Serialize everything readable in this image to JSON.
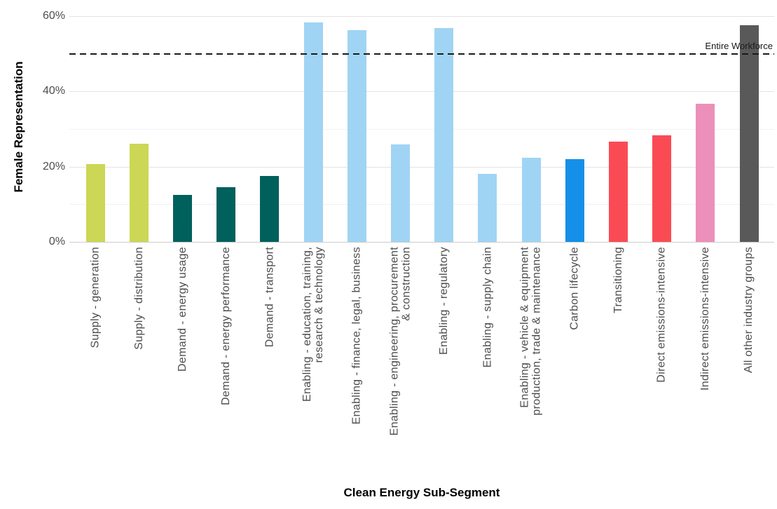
{
  "chart_data": {
    "type": "bar",
    "title": "",
    "xlabel": "Clean Energy Sub-Segment",
    "ylabel": "Female Representation",
    "ylim": [
      0,
      60
    ],
    "y_unit": "%",
    "grid": "horizontal",
    "legend_position": "none",
    "yticks": [
      {
        "value": 0,
        "label": "0%"
      },
      {
        "value": 20,
        "label": "20%"
      },
      {
        "value": 40,
        "label": "40%"
      },
      {
        "value": 60,
        "label": "60%"
      }
    ],
    "minor_gridlines": [
      10,
      30,
      50
    ],
    "reference_line": {
      "value": 50,
      "label": "Entire Workforce",
      "style": "dashed",
      "color": "#1a1a1a"
    },
    "bars": [
      {
        "category": "Supply - generation",
        "value": 20.7,
        "color": "#ccd755",
        "group": "Supply"
      },
      {
        "category": "Supply - distribution",
        "value": 26.0,
        "color": "#ccd755",
        "group": "Supply"
      },
      {
        "category": "Demand - energy usage",
        "value": 12.4,
        "color": "#00605c",
        "group": "Demand"
      },
      {
        "category": "Demand - energy performance",
        "value": 14.5,
        "color": "#00605c",
        "group": "Demand"
      },
      {
        "category": "Demand - transport",
        "value": 17.6,
        "color": "#00605c",
        "group": "Demand"
      },
      {
        "category": "Enabling - education, training,\nresearch & technology",
        "value": 58.3,
        "color": "#a0d4f4",
        "group": "Enabling"
      },
      {
        "category": "Enabling - finance, legal, business",
        "value": 56.2,
        "color": "#a0d4f4",
        "group": "Enabling"
      },
      {
        "category": "Enabling - engineering, procurement\n& construction",
        "value": 25.9,
        "color": "#a0d4f4",
        "group": "Enabling"
      },
      {
        "category": "Enabling - regulatory",
        "value": 56.8,
        "color": "#a0d4f4",
        "group": "Enabling"
      },
      {
        "category": "Enabling - supply chain",
        "value": 18.0,
        "color": "#a0d4f4",
        "group": "Enabling"
      },
      {
        "category": "Enabling - vehicle & equipment\nproduction, trade & maintenance",
        "value": 22.4,
        "color": "#a0d4f4",
        "group": "Enabling"
      },
      {
        "category": "Carbon lifecycle",
        "value": 21.9,
        "color": "#1590e8",
        "group": "Carbon lifecycle"
      },
      {
        "category": "Transitioning",
        "value": 26.6,
        "color": "#fa4b55",
        "group": "Transitioning"
      },
      {
        "category": "Direct emissions-intensive",
        "value": 28.3,
        "color": "#fa4b55",
        "group": "Direct emissions-intensive"
      },
      {
        "category": "Indirect emissions-intensive",
        "value": 36.7,
        "color": "#ec8fb9",
        "group": "Indirect emissions-intensive"
      },
      {
        "category": "All other industry groups",
        "value": 57.5,
        "color": "#595959",
        "group": "All other industry groups"
      }
    ]
  },
  "colors": {
    "background": "#ffffff",
    "major_gridline": "#e3e3e3",
    "minor_gridline": "#f1f1f1",
    "baseline": "#cccccc",
    "axis_text": "#4d4d4d",
    "title_text": "#000000",
    "reference_line": "#1a1a1a"
  }
}
